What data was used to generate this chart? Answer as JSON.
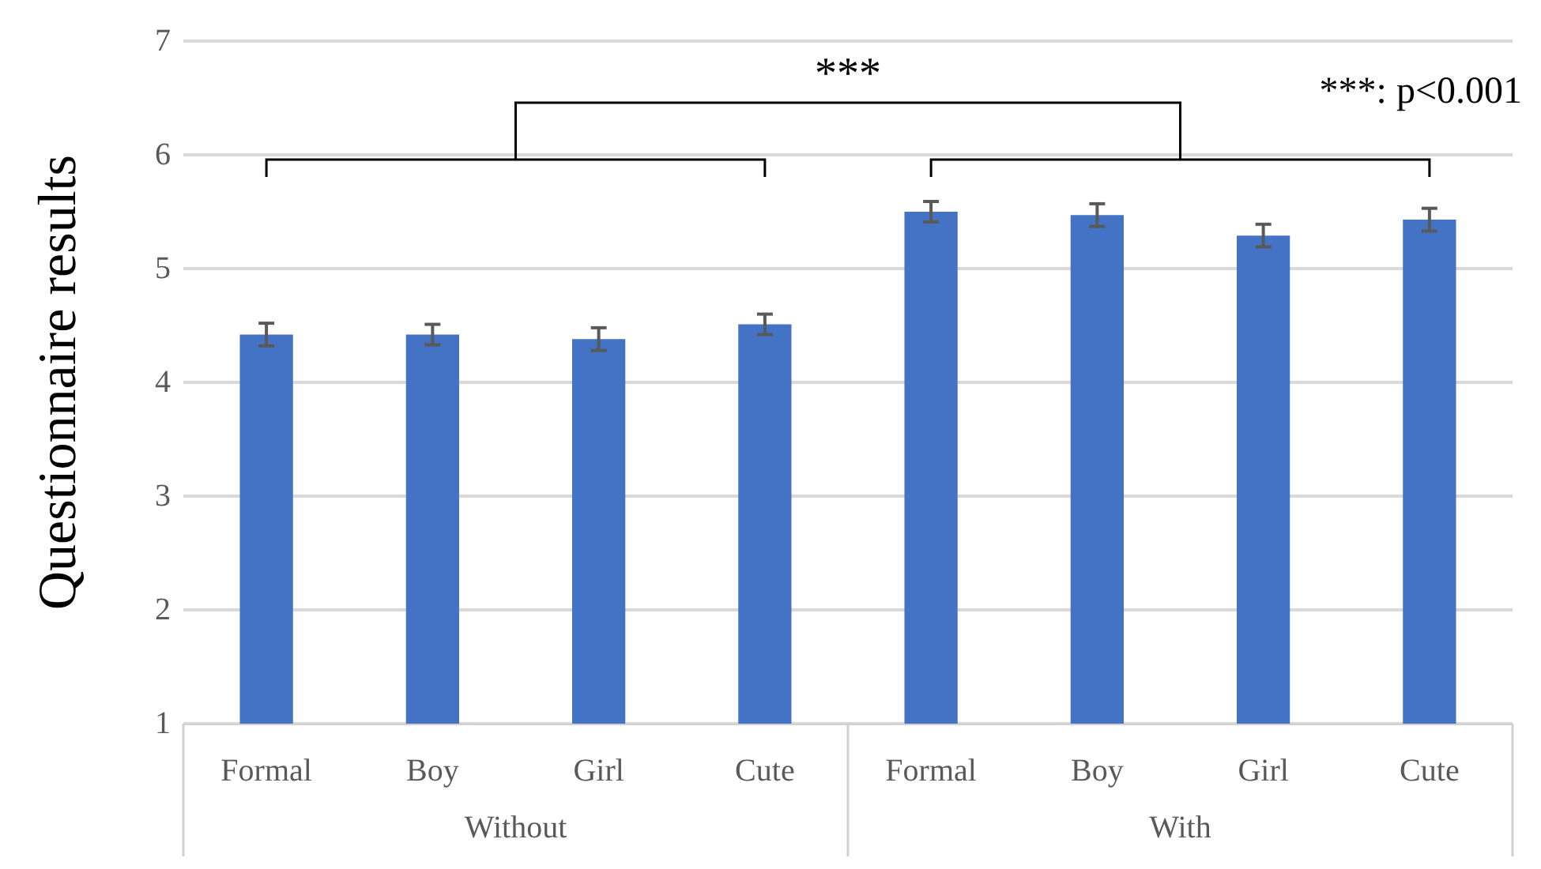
{
  "chart_data": {
    "type": "bar",
    "ylabel": "Questionnaire results",
    "categories": [
      "Formal",
      "Boy",
      "Girl",
      "Cute",
      "Formal",
      "Boy",
      "Girl",
      "Cute"
    ],
    "values": [
      4.42,
      4.42,
      4.38,
      4.51,
      5.5,
      5.47,
      5.29,
      5.43
    ],
    "errors": [
      0.1,
      0.09,
      0.1,
      0.09,
      0.09,
      0.1,
      0.1,
      0.1
    ],
    "color": "#4472c4",
    "ylim": [
      1,
      7
    ],
    "yticks": [
      1,
      2,
      3,
      4,
      5,
      6,
      7
    ],
    "grid": "y",
    "annotations": [
      "***",
      "***: p<0.001",
      "Without",
      "With"
    ]
  }
}
